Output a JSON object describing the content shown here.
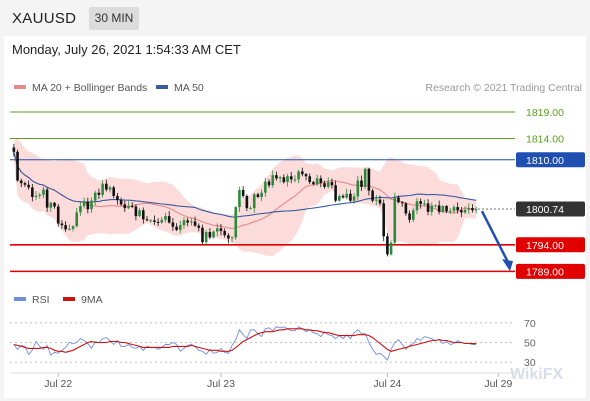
{
  "header": {
    "symbol": "XAUUSD",
    "timeframe": "30 MIN",
    "datetime": "Monday, July 26, 2021 1:54:33 AM CET"
  },
  "legend_main": [
    {
      "label": "MA 20 + Bollinger Bands",
      "color": "#e88a8a"
    },
    {
      "label": "MA 50",
      "color": "#3a5ba0"
    }
  ],
  "legend_rsi": [
    {
      "label": "RSI",
      "color": "#6f8ee0"
    },
    {
      "label": "9MA",
      "color": "#cc1111"
    }
  ],
  "copyright": "Research © 2021 Trading Central",
  "watermark": "WikiFX",
  "colors": {
    "green_level": "#5a9e1c",
    "blue_level": "#1f4fb0",
    "red_level": "#e00000",
    "bull_candle": "#2c8a3c",
    "bear_candle": "#111111",
    "bollinger_fill": "#fbd5d5",
    "ma20": "#e88a8a",
    "ma50": "#3a5ba0"
  },
  "chart_data": [
    {
      "type": "candlestick",
      "ylim": [
        1787,
        1822
      ],
      "x_ticks": [
        "Jul 22",
        "Jul 23",
        "Jul 24",
        "Jul 29"
      ],
      "levels": [
        {
          "value": 1819.0,
          "label": "1819.00",
          "color": "green"
        },
        {
          "value": 1814.0,
          "label": "1814.00",
          "color": "green"
        },
        {
          "value": 1810.0,
          "label": "1810.00",
          "color": "blue"
        },
        {
          "value": 1800.74,
          "label": "1800.74",
          "color": "price"
        },
        {
          "value": 1794.0,
          "label": "1794.00",
          "color": "red"
        },
        {
          "value": 1789.0,
          "label": "1789.00",
          "color": "red"
        }
      ],
      "close": [
        1811.5,
        1806.1,
        1805.6,
        1805.3,
        1804.8,
        1803.0,
        1803.2,
        1803.4,
        1804.4,
        1801.0,
        1801.9,
        1801.2,
        1798.0,
        1797.7,
        1796.9,
        1797.0,
        1797.5,
        1800.1,
        1801.3,
        1802.1,
        1800.7,
        1802.3,
        1803.8,
        1803.4,
        1805.5,
        1804.4,
        1804.8,
        1803.2,
        1802.4,
        1801.6,
        1800.9,
        1801.3,
        1801.2,
        1799.4,
        1800.5,
        1798.8,
        1798.6,
        1798.6,
        1798.3,
        1798.2,
        1798.7,
        1799.4,
        1798.2,
        1797.4,
        1796.8,
        1797.7,
        1798.6,
        1798.2,
        1798.4,
        1797.6,
        1797.2,
        1794.5,
        1796.4,
        1795.4,
        1796.5,
        1797.1,
        1796.6,
        1795.8,
        1795.2,
        1795.4,
        1801.1,
        1804.3,
        1803.2,
        1800.9,
        1800.9,
        1803.5,
        1803.0,
        1803.8,
        1805.9,
        1805.2,
        1807.1,
        1806.5,
        1806.7,
        1805.8,
        1806.9,
        1806.3,
        1806.3,
        1807.8,
        1807.3,
        1806.9,
        1805.8,
        1805.4,
        1806.5,
        1805.6,
        1804.9,
        1805.8,
        1805.2,
        1802.3,
        1803.2,
        1802.9,
        1803.6,
        1802.3,
        1803.1,
        1806.1,
        1804.9,
        1808.3,
        1804.2,
        1802.3,
        1802.5,
        1801.8,
        1795.6,
        1792.2,
        1794.4,
        1802.9,
        1802.0,
        1801.8,
        1799.9,
        1798.7,
        1800.5,
        1802.2,
        1801.7,
        1801.8,
        1800.2,
        1801.4,
        1801.4,
        1800.2,
        1801.3,
        1800.3,
        1800.4,
        1801.1,
        1800.5,
        1800.1,
        1800.6,
        1800.9,
        1800.5,
        1800.7
      ],
      "rsi": {
        "ylim": [
          25,
          75
        ],
        "ticks": [
          70,
          50,
          30
        ],
        "rsi": [
          48,
          43,
          47,
          46,
          38,
          42,
          51,
          46,
          43,
          47,
          37,
          40,
          39,
          42,
          45,
          50,
          49,
          50,
          54,
          52,
          49,
          44,
          51,
          50,
          54,
          55,
          52,
          48,
          52,
          46,
          46,
          48,
          45,
          44,
          46,
          42,
          46,
          45,
          45,
          43,
          45,
          48,
          48,
          50,
          48,
          41,
          44,
          47,
          48,
          46,
          42,
          41,
          38,
          43,
          39,
          40,
          44,
          40,
          39,
          47,
          53,
          63,
          58,
          54,
          63,
          63,
          59,
          56,
          64,
          65,
          62,
          66,
          65,
          66,
          64,
          62,
          62,
          66,
          64,
          61,
          63,
          60,
          59,
          56,
          61,
          58,
          57,
          54,
          57,
          54,
          58,
          54,
          60,
          63,
          59,
          59,
          50,
          43,
          38,
          39,
          36,
          32,
          43,
          50,
          53,
          48,
          43,
          47,
          49,
          54,
          52,
          56,
          55,
          54,
          52,
          53,
          49,
          51,
          48,
          49,
          52,
          50,
          49,
          49,
          48,
          48
        ],
        "ma9": [
          48,
          47,
          46,
          45,
          44,
          44,
          44,
          44,
          45,
          45,
          44,
          42,
          41,
          41,
          40,
          41,
          42,
          44,
          46,
          48,
          50,
          51,
          50,
          50,
          50,
          50,
          51,
          51,
          51,
          50,
          50,
          49,
          48,
          47,
          46,
          45,
          45,
          45,
          45,
          45,
          45,
          45,
          45,
          46,
          46,
          46,
          46,
          46,
          47,
          46,
          45,
          44,
          43,
          42,
          42,
          42,
          41,
          41,
          41,
          42,
          45,
          48,
          51,
          53,
          55,
          57,
          59,
          60,
          61,
          61,
          61,
          62,
          63,
          63,
          64,
          64,
          64,
          64,
          64,
          63,
          63,
          62,
          62,
          61,
          60,
          60,
          59,
          58,
          57,
          57,
          57,
          57,
          57,
          58,
          58,
          58,
          57,
          55,
          52,
          49,
          46,
          43,
          41,
          42,
          43,
          44,
          45,
          46,
          47,
          48,
          49,
          50,
          51,
          52,
          52,
          53,
          52,
          52,
          51,
          50,
          50,
          50,
          49,
          49,
          49,
          49
        ]
      }
    }
  ]
}
